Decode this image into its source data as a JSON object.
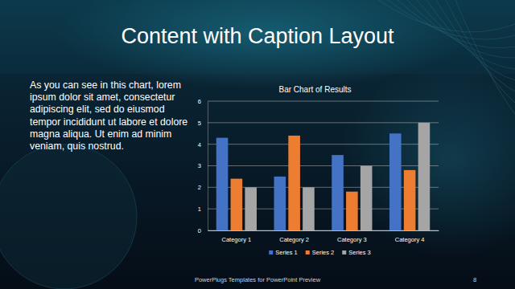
{
  "slide": {
    "title": "Content with Caption Layout",
    "caption": "As you can see in this chart, lorem ipsum dolor sit amet, consectetur adipiscing elit, sed do eiusmod tempor incididunt ut labore et dolore magna aliqua. Ut enim ad minim veniam, quis nostrud.",
    "footer": "PowerPlugs Templates for PowerPoint Preview",
    "page_number": 8
  },
  "chart_data": {
    "type": "bar",
    "title": "Bar Chart of Results",
    "categories": [
      "Category 1",
      "Category 2",
      "Category 3",
      "Category 4"
    ],
    "series": [
      {
        "name": "Series 1",
        "color": "#4472c4",
        "values": [
          4.3,
          2.5,
          3.5,
          4.5
        ]
      },
      {
        "name": "Series 2",
        "color": "#ed7d31",
        "values": [
          2.4,
          4.4,
          1.8,
          2.8
        ]
      },
      {
        "name": "Series 3",
        "color": "#a5a5a5",
        "values": [
          2,
          2,
          3,
          5
        ]
      }
    ],
    "ylim": [
      0,
      6
    ],
    "yticks": [
      0,
      1,
      2,
      3,
      4,
      5,
      6
    ],
    "grid": true,
    "legend": "bottom"
  }
}
